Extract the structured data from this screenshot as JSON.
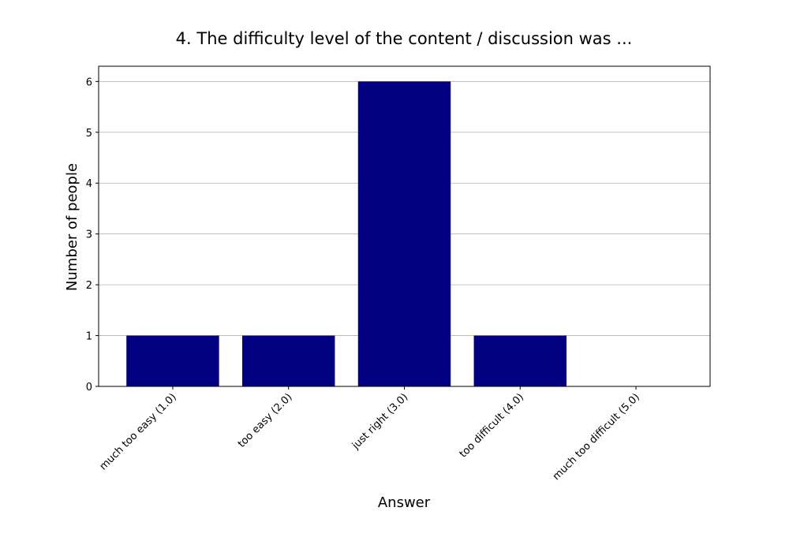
{
  "chart_data": {
    "type": "bar",
    "title": "4. The difficulty level of the content / discussion was ...",
    "xlabel": "Answer",
    "ylabel": "Number of people",
    "categories": [
      "much too easy (1.0)",
      "too easy (2.0)",
      "just right (3.0)",
      "too difficult (4.0)",
      "much too difficult (5.0)"
    ],
    "values": [
      1,
      1,
      6,
      1,
      0
    ],
    "color": "#000080",
    "ylim": [
      0,
      6.3
    ],
    "yticks": [
      0,
      1,
      2,
      3,
      4,
      5,
      6
    ],
    "grid": true
  }
}
